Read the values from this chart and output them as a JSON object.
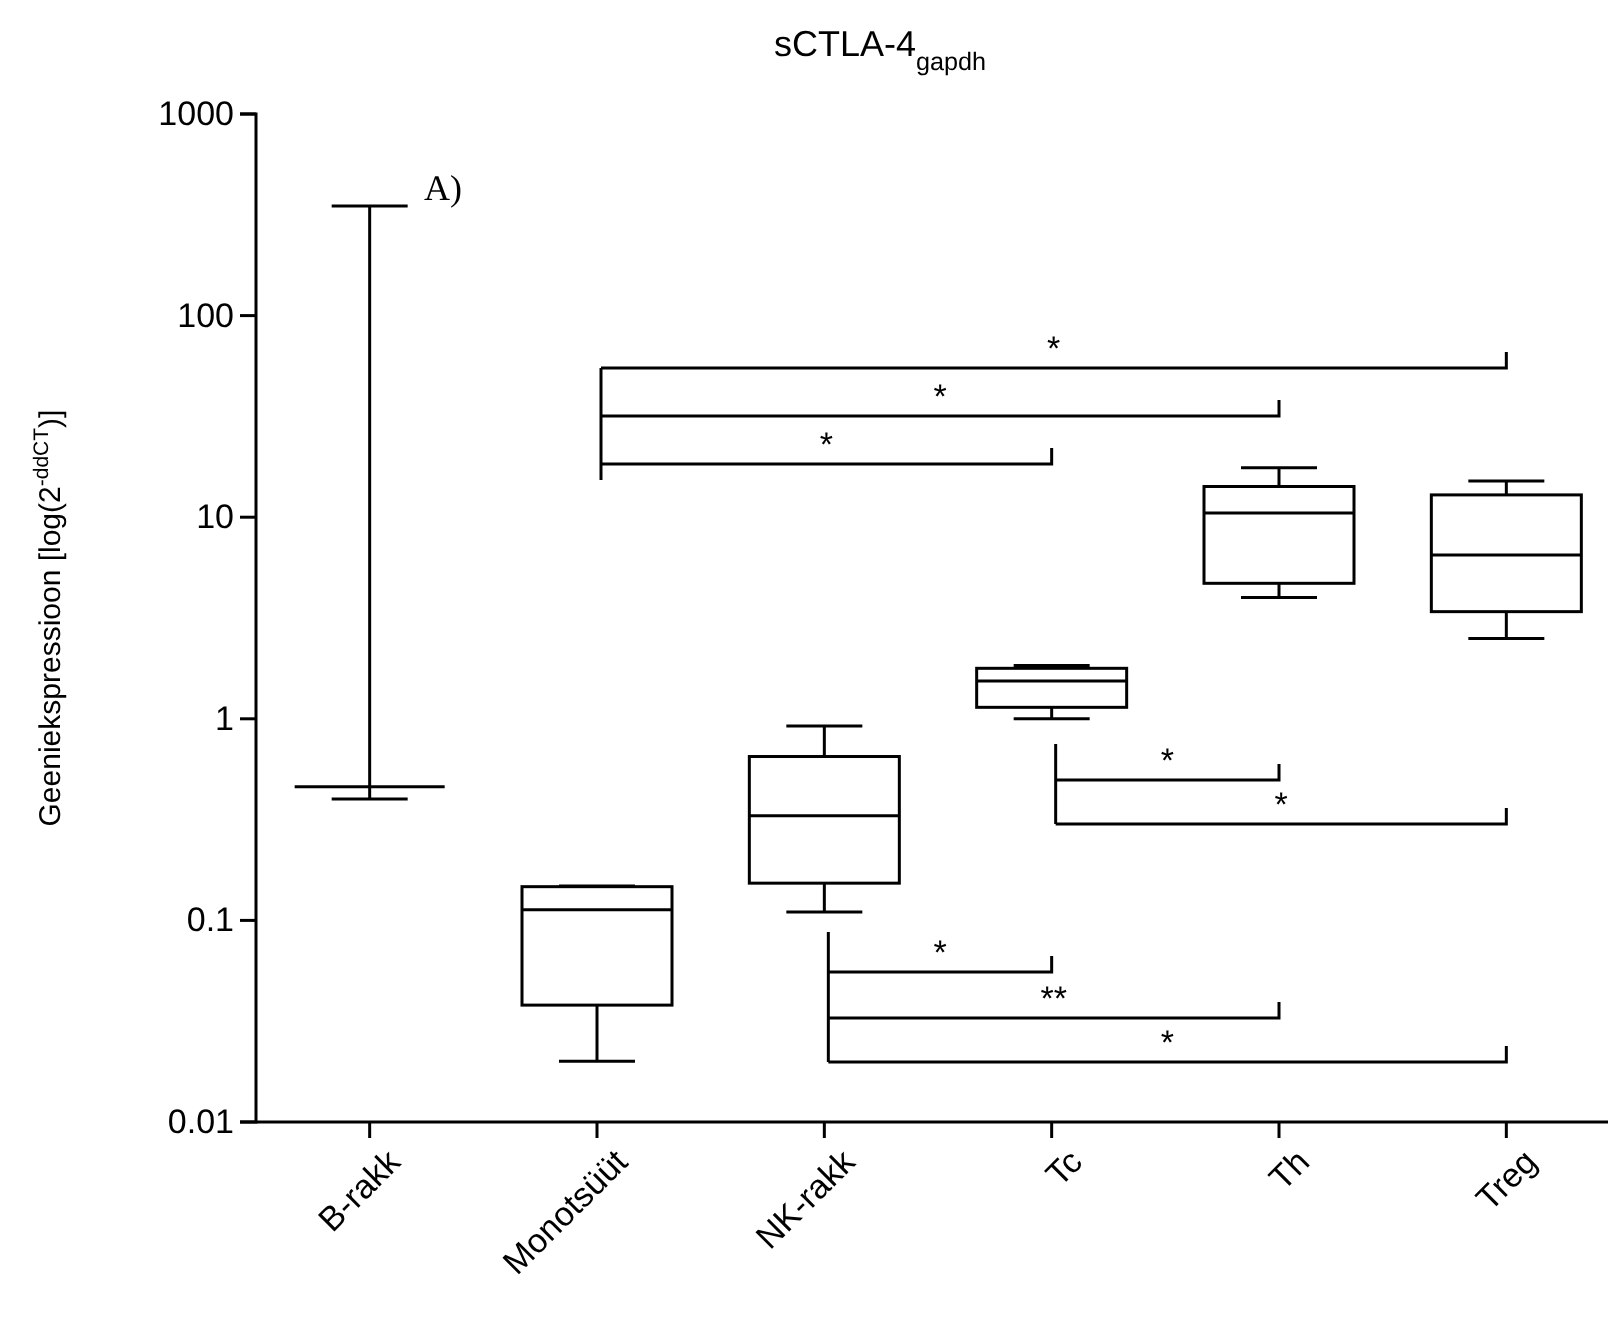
{
  "chart_data": {
    "type": "box",
    "title": "sCTLA-4$_{gapdh}$",
    "ylabel": "Geeniekspressioon [log(2$^{-ddCT}$)]",
    "categories": [
      "B-rakk",
      "Monotsüüt",
      "NK-rakk",
      "Tc",
      "Th",
      "Treg"
    ],
    "boxes": [
      {
        "low": 0.4,
        "q1": 0.46,
        "median": 0.46,
        "q3": 0.46,
        "high": 350
      },
      {
        "low": 0.02,
        "q1": 0.038,
        "median": 0.113,
        "q3": 0.147,
        "high": 0.148
      },
      {
        "low": 0.11,
        "q1": 0.153,
        "median": 0.33,
        "q3": 0.65,
        "high": 0.92
      },
      {
        "low": 1.0,
        "q1": 1.14,
        "median": 1.54,
        "q3": 1.78,
        "high": 1.84
      },
      {
        "low": 4.0,
        "q1": 4.7,
        "median": 10.5,
        "q3": 14.2,
        "high": 17.6
      },
      {
        "low": 2.5,
        "q1": 3.4,
        "median": 6.5,
        "q3": 12.9,
        "high": 15.1
      }
    ],
    "log": true,
    "ylim": [
      0.01,
      1000
    ],
    "yticks": [
      0.01,
      0.1,
      1,
      10,
      100,
      1000
    ],
    "annotations": [
      "A)",
      "*",
      "*",
      "*",
      "*",
      "*",
      "*",
      "**",
      "*"
    ]
  }
}
